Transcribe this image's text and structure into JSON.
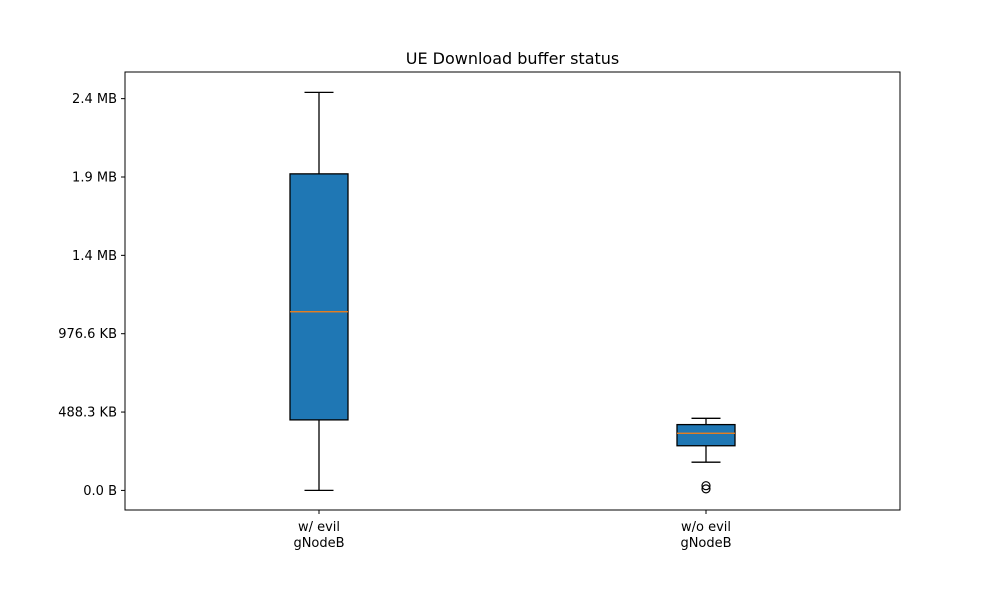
{
  "chart_data": {
    "type": "boxplot",
    "title": "UE Download buffer status",
    "xlabel": "",
    "ylabel": "",
    "categories": [
      [
        "w/ evil",
        "gNodeB"
      ],
      [
        "w/o evil",
        "gNodeB"
      ]
    ],
    "y_unit": "bytes",
    "ylim": [
      -125000,
      2670000
    ],
    "yticks": [
      {
        "value": 0,
        "label": "0.0 B"
      },
      {
        "value": 500000,
        "label": "488.3 KB"
      },
      {
        "value": 1000000,
        "label": "976.6 KB"
      },
      {
        "value": 1500000,
        "label": "1.4 MB"
      },
      {
        "value": 2000000,
        "label": "1.9 MB"
      },
      {
        "value": 2500000,
        "label": "2.4 MB"
      }
    ],
    "boxes": [
      {
        "whisker_low": 0,
        "q1": 450000,
        "median": 1140000,
        "q3": 2020000,
        "whisker_high": 2540000,
        "outliers": []
      },
      {
        "whisker_low": 180000,
        "q1": 285000,
        "median": 365000,
        "q3": 420000,
        "whisker_high": 460000,
        "outliers": [
          10000,
          30000
        ]
      }
    ],
    "colors": {
      "box_fill": "#1f77b4",
      "median": "#ff7f0e",
      "line": "#000000"
    },
    "grid": false
  }
}
